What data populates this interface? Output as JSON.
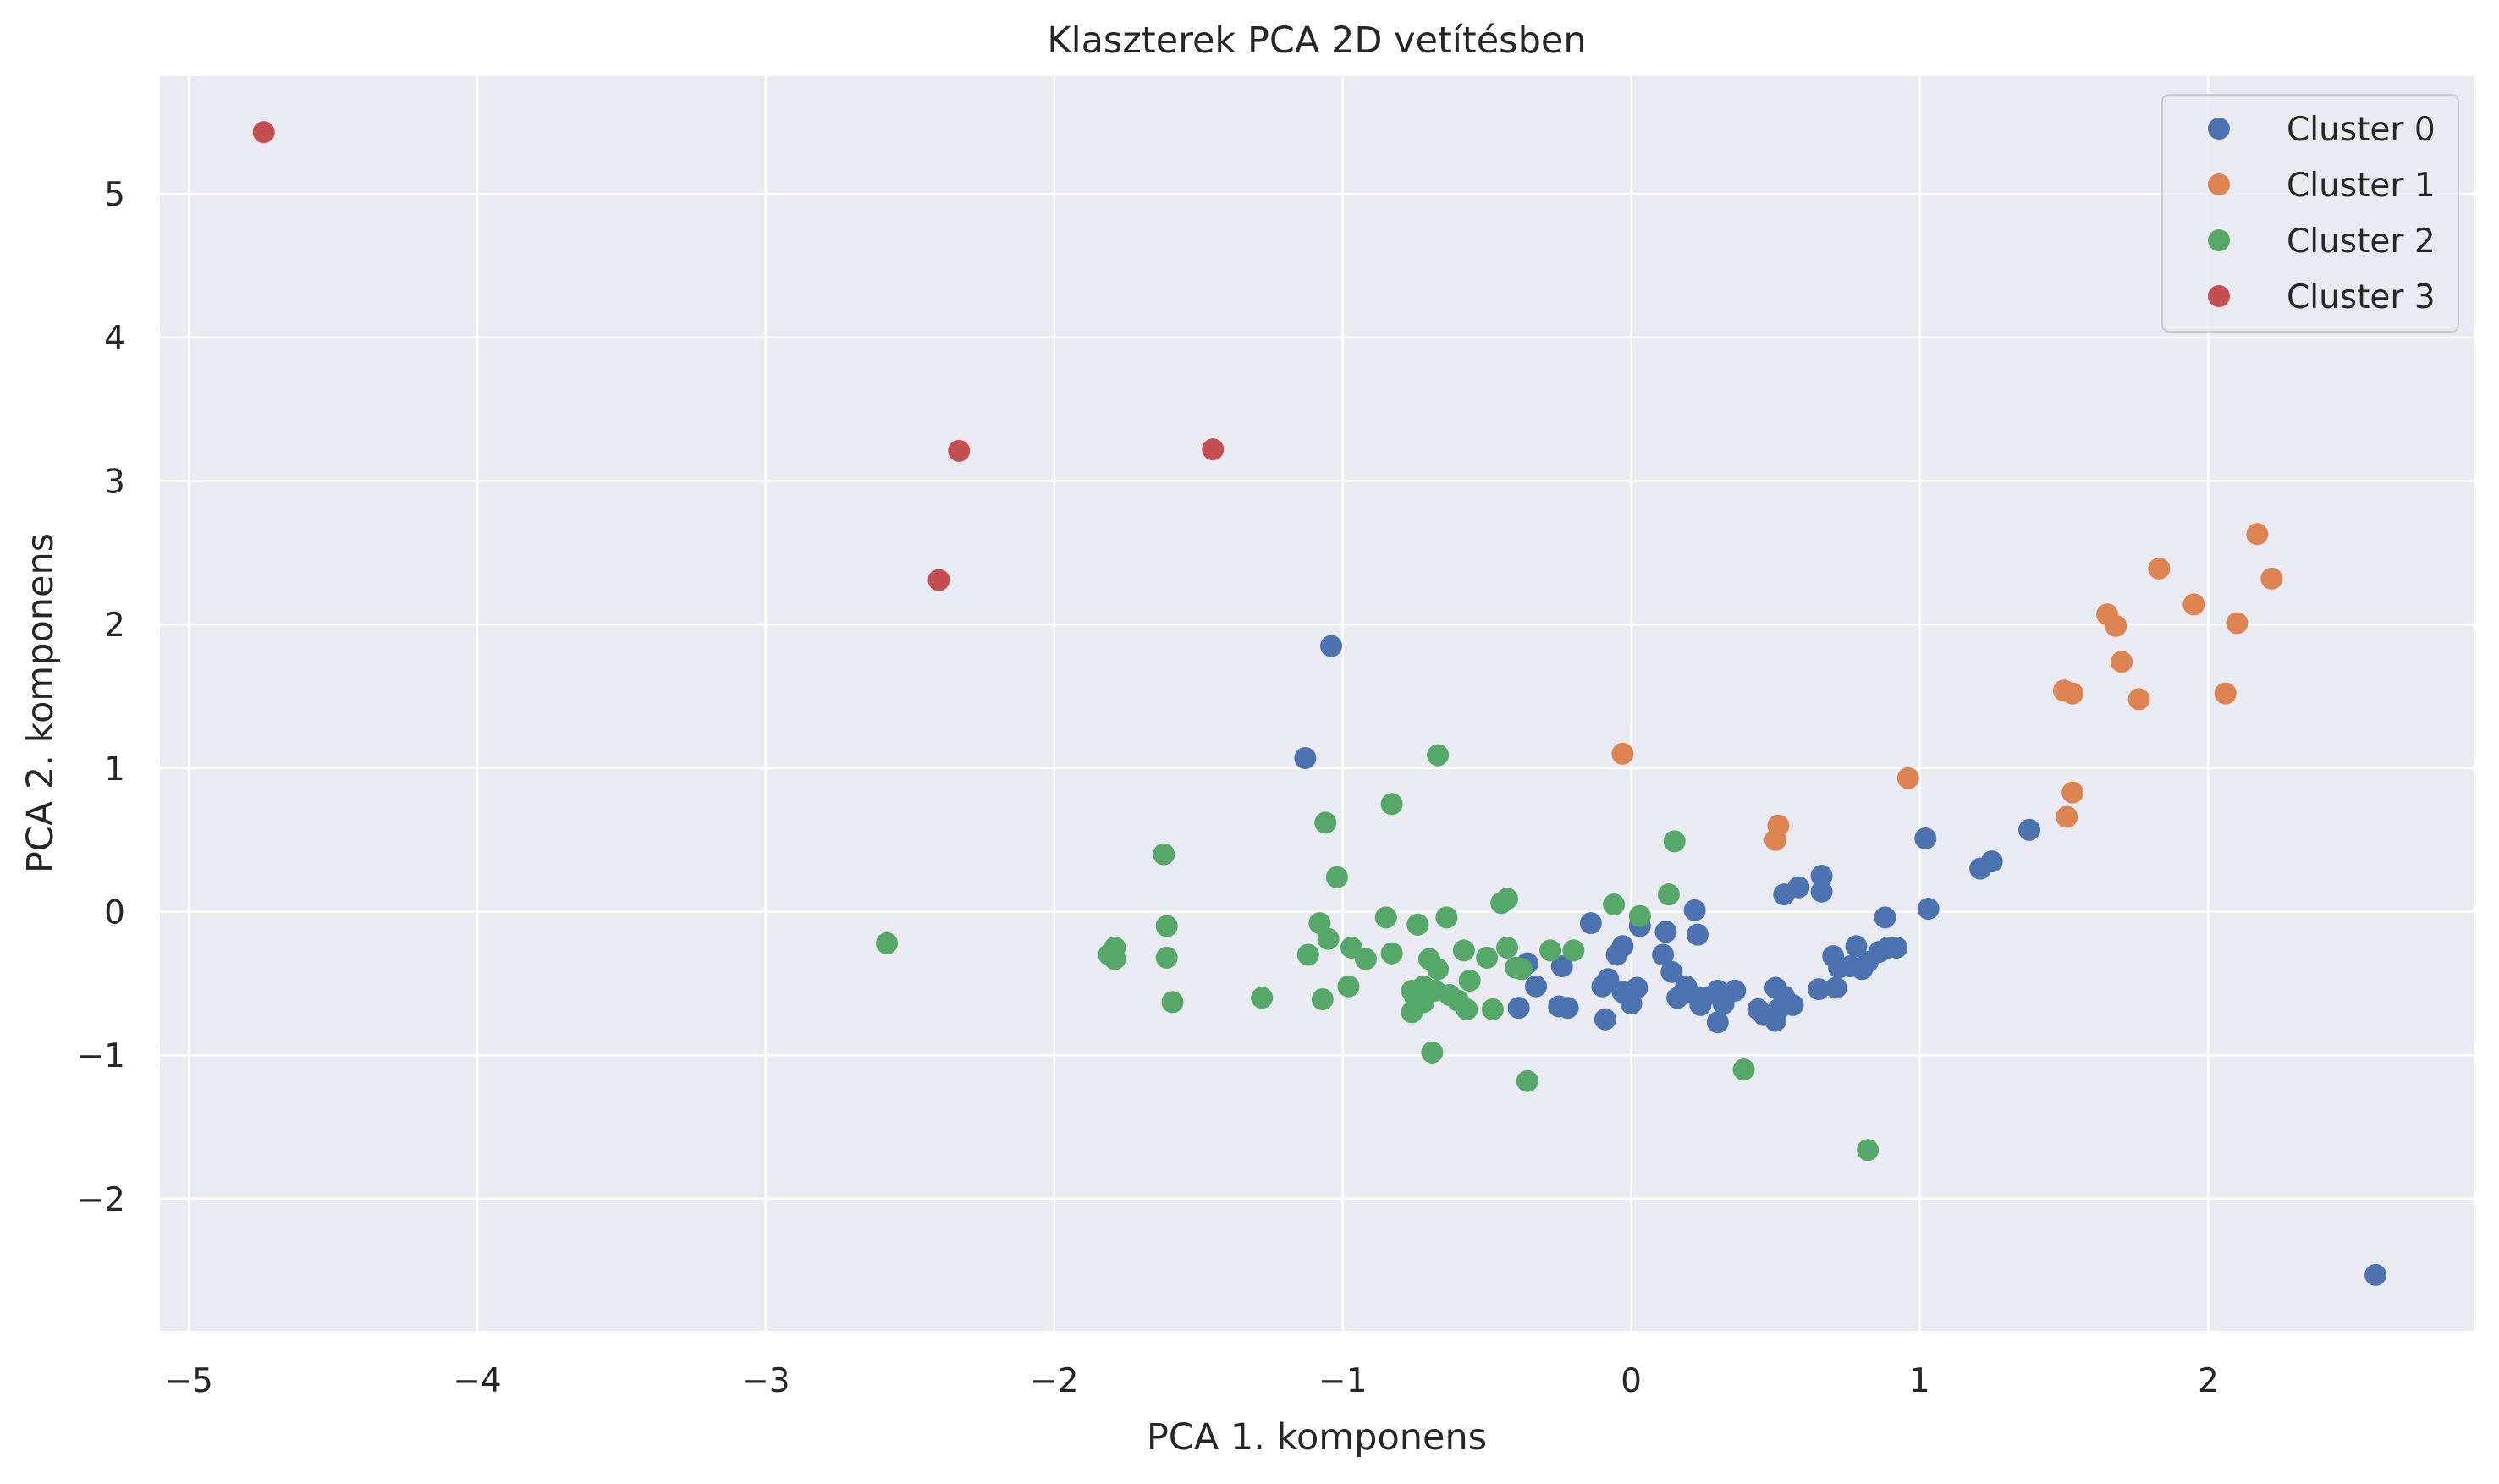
{
  "chart_data": {
    "type": "scatter",
    "title": "Klaszterek PCA 2D vetítésben",
    "xlabel": "PCA 1. komponens",
    "ylabel": "PCA 2. komponens",
    "xlim": [
      -5.1,
      2.92
    ],
    "ylim": [
      -2.92,
      5.82
    ],
    "xticks": [
      -5,
      -4,
      -3,
      -2,
      -1,
      0,
      1,
      2
    ],
    "yticks": [
      -2,
      -1,
      0,
      1,
      2,
      3,
      4,
      5
    ],
    "xtick_labels": [
      "−5",
      "−4",
      "−3",
      "−2",
      "−1",
      "0",
      "1",
      "2"
    ],
    "ytick_labels": [
      "−2",
      "−1",
      "0",
      "1",
      "2",
      "3",
      "4",
      "5"
    ],
    "grid": true,
    "legend_position": "top-right",
    "background": "#eaeaf2",
    "series": [
      {
        "name": "Cluster 0",
        "color": "#4c72b0",
        "points": [
          [
            -1.04,
            1.85
          ],
          [
            -1.13,
            1.07
          ],
          [
            -0.36,
            -0.36
          ],
          [
            -0.33,
            -0.52
          ],
          [
            -0.39,
            -0.67
          ],
          [
            -0.24,
            -0.38
          ],
          [
            -0.25,
            -0.66
          ],
          [
            -0.22,
            -0.67
          ],
          [
            -0.14,
            -0.08
          ],
          [
            -0.1,
            -0.52
          ],
          [
            -0.09,
            -0.75
          ],
          [
            -0.08,
            -0.47
          ],
          [
            -0.05,
            -0.3
          ],
          [
            -0.03,
            -0.24
          ],
          [
            -0.03,
            -0.56
          ],
          [
            0.0,
            -0.64
          ],
          [
            0.02,
            -0.53
          ],
          [
            0.03,
            -0.1
          ],
          [
            0.11,
            -0.3
          ],
          [
            0.12,
            -0.14
          ],
          [
            0.14,
            -0.42
          ],
          [
            0.16,
            -0.6
          ],
          [
            0.19,
            -0.52
          ],
          [
            0.2,
            -0.56
          ],
          [
            0.22,
            0.01
          ],
          [
            0.23,
            -0.16
          ],
          [
            0.24,
            -0.65
          ],
          [
            0.25,
            -0.6
          ],
          [
            0.3,
            -0.55
          ],
          [
            0.3,
            -0.77
          ],
          [
            0.32,
            -0.64
          ],
          [
            0.36,
            -0.55
          ],
          [
            0.44,
            -0.68
          ],
          [
            0.46,
            -0.72
          ],
          [
            0.5,
            -0.53
          ],
          [
            0.5,
            -0.76
          ],
          [
            0.51,
            -0.68
          ],
          [
            0.53,
            -0.59
          ],
          [
            0.53,
            0.12
          ],
          [
            0.56,
            -0.65
          ],
          [
            0.58,
            0.17
          ],
          [
            0.65,
            -0.54
          ],
          [
            0.66,
            0.14
          ],
          [
            0.66,
            0.25
          ],
          [
            0.7,
            -0.31
          ],
          [
            0.71,
            -0.53
          ],
          [
            0.72,
            -0.39
          ],
          [
            0.76,
            -0.38
          ],
          [
            0.78,
            -0.24
          ],
          [
            0.8,
            -0.4
          ],
          [
            0.82,
            -0.35
          ],
          [
            0.86,
            -0.28
          ],
          [
            0.88,
            -0.04
          ],
          [
            0.89,
            -0.25
          ],
          [
            0.92,
            -0.25
          ],
          [
            1.02,
            0.51
          ],
          [
            1.03,
            0.02
          ],
          [
            1.21,
            0.3
          ],
          [
            1.25,
            0.35
          ],
          [
            1.38,
            0.57
          ],
          [
            2.58,
            -2.53
          ]
        ]
      },
      {
        "name": "Cluster 1",
        "color": "#dd8452",
        "points": [
          [
            -0.03,
            1.1
          ],
          [
            0.5,
            0.5
          ],
          [
            0.51,
            0.6
          ],
          [
            0.96,
            0.93
          ],
          [
            1.5,
            1.54
          ],
          [
            1.51,
            0.66
          ],
          [
            1.53,
            0.83
          ],
          [
            1.53,
            1.52
          ],
          [
            1.65,
            2.07
          ],
          [
            1.68,
            1.99
          ],
          [
            1.7,
            1.74
          ],
          [
            1.76,
            1.48
          ],
          [
            1.83,
            2.39
          ],
          [
            1.95,
            2.14
          ],
          [
            2.06,
            1.52
          ],
          [
            2.1,
            2.01
          ],
          [
            2.17,
            2.63
          ],
          [
            2.22,
            2.32
          ]
        ]
      },
      {
        "name": "Cluster 2",
        "color": "#55a868",
        "points": [
          [
            -2.58,
            -0.22
          ],
          [
            -1.81,
            -0.3
          ],
          [
            -1.79,
            -0.25
          ],
          [
            -1.79,
            -0.33
          ],
          [
            -1.62,
            0.4
          ],
          [
            -1.61,
            -0.1
          ],
          [
            -1.61,
            -0.32
          ],
          [
            -1.59,
            -0.63
          ],
          [
            -1.28,
            -0.6
          ],
          [
            -1.12,
            -0.3
          ],
          [
            -1.08,
            -0.08
          ],
          [
            -1.07,
            -0.61
          ],
          [
            -1.06,
            0.62
          ],
          [
            -1.05,
            -0.19
          ],
          [
            -1.02,
            0.24
          ],
          [
            -0.98,
            -0.52
          ],
          [
            -0.97,
            -0.25
          ],
          [
            -0.92,
            -0.33
          ],
          [
            -0.85,
            -0.04
          ],
          [
            -0.83,
            0.75
          ],
          [
            -0.83,
            -0.29
          ],
          [
            -0.76,
            -0.7
          ],
          [
            -0.76,
            -0.55
          ],
          [
            -0.75,
            -0.59
          ],
          [
            -0.74,
            -0.09
          ],
          [
            -0.72,
            -0.52
          ],
          [
            -0.72,
            -0.63
          ],
          [
            -0.7,
            -0.33
          ],
          [
            -0.69,
            -0.98
          ],
          [
            -0.68,
            -0.55
          ],
          [
            -0.67,
            1.09
          ],
          [
            -0.67,
            -0.4
          ],
          [
            -0.64,
            -0.04
          ],
          [
            -0.63,
            -0.58
          ],
          [
            -0.6,
            -0.62
          ],
          [
            -0.58,
            -0.27
          ],
          [
            -0.57,
            -0.68
          ],
          [
            -0.56,
            -0.48
          ],
          [
            -0.5,
            -0.32
          ],
          [
            -0.48,
            -0.68
          ],
          [
            -0.45,
            0.06
          ],
          [
            -0.43,
            0.09
          ],
          [
            -0.43,
            -0.25
          ],
          [
            -0.4,
            -0.39
          ],
          [
            -0.38,
            -0.4
          ],
          [
            -0.36,
            -1.18
          ],
          [
            -0.28,
            -0.27
          ],
          [
            -0.2,
            -0.27
          ],
          [
            -0.06,
            0.05
          ],
          [
            0.03,
            -0.03
          ],
          [
            0.13,
            0.12
          ],
          [
            0.15,
            0.49
          ],
          [
            0.39,
            -1.1
          ],
          [
            0.82,
            -1.66
          ]
        ]
      },
      {
        "name": "Cluster 3",
        "color": "#c44e52",
        "points": [
          [
            -4.74,
            5.43
          ],
          [
            -2.33,
            3.21
          ],
          [
            -2.4,
            2.31
          ],
          [
            -1.45,
            3.22
          ]
        ]
      }
    ]
  }
}
